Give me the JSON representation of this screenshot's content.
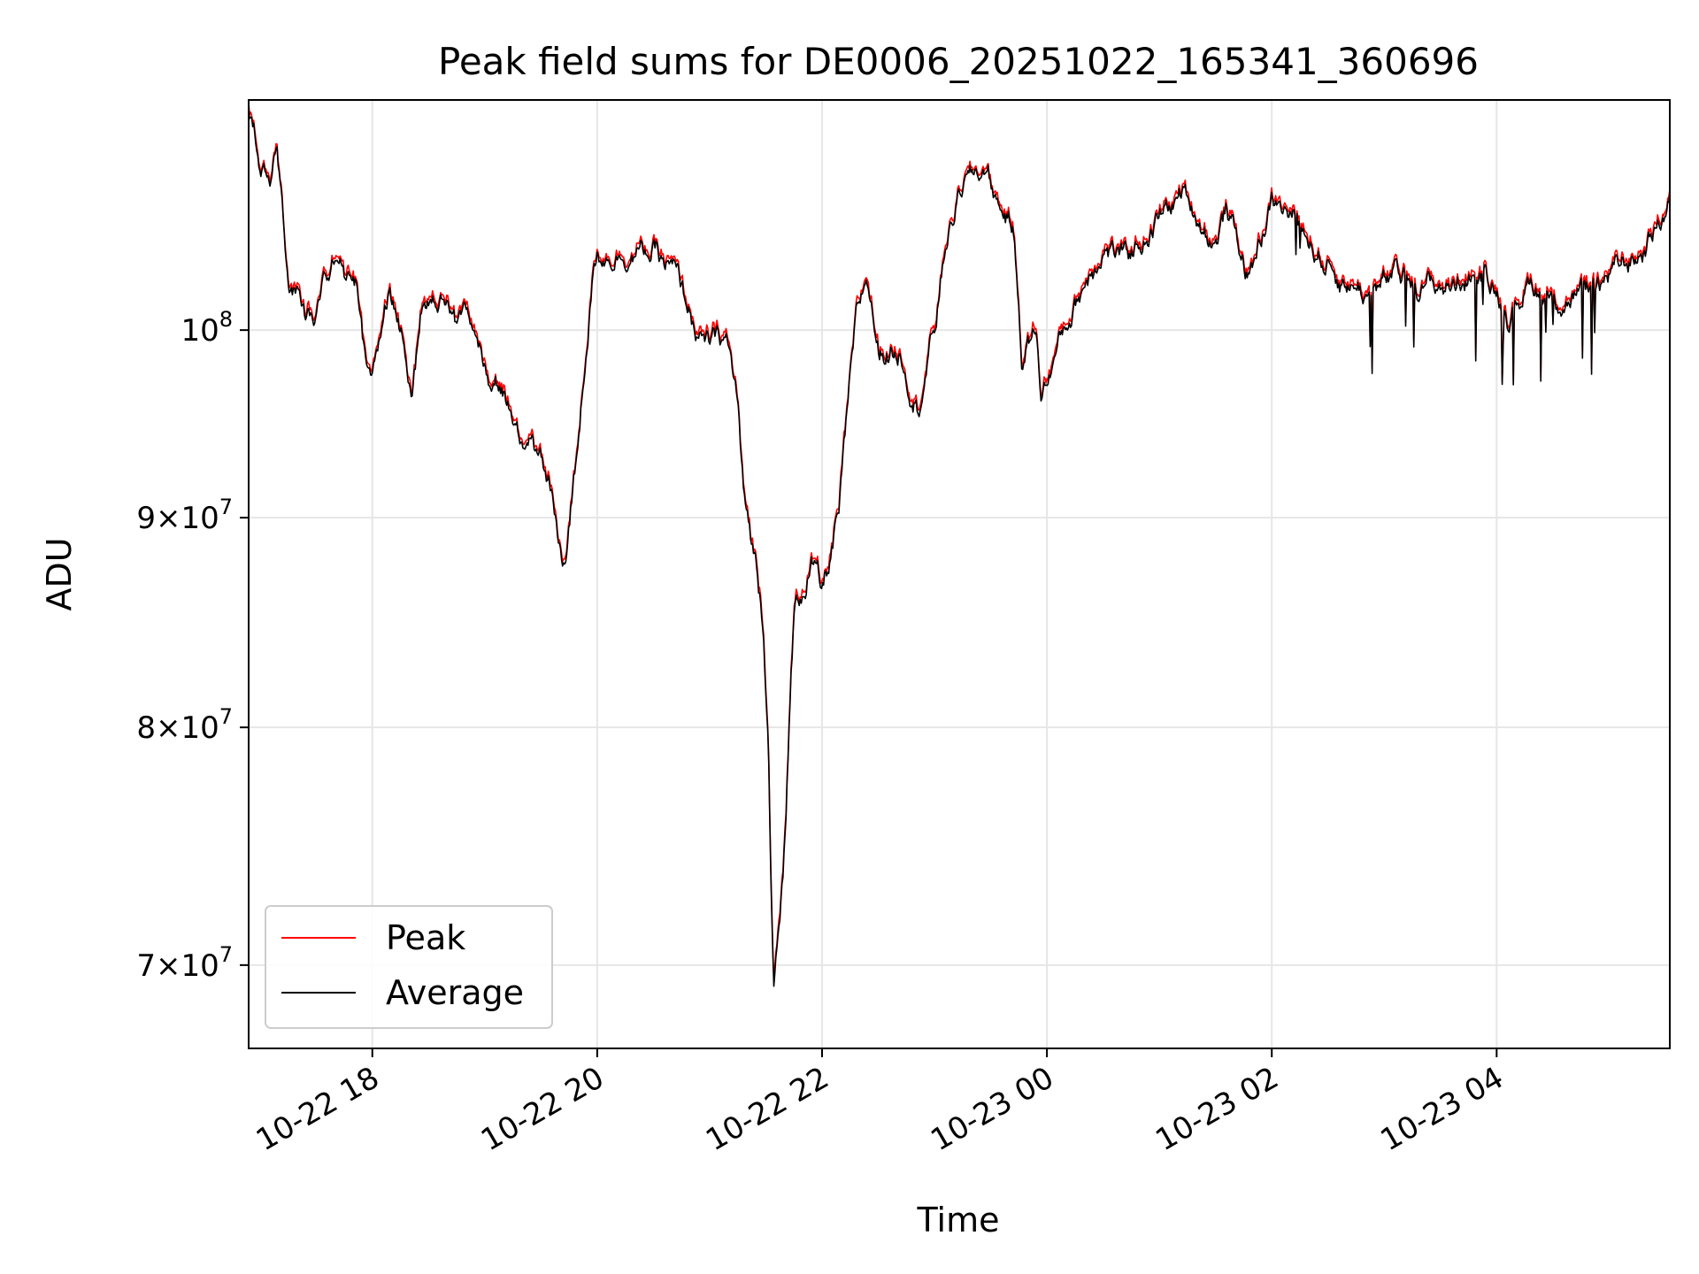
{
  "chart_data": {
    "type": "line",
    "title": "Peak field sums for DE0006_20251022_165341_360696",
    "xlabel": "Time",
    "ylabel": "ADU",
    "yscale": "log",
    "xlim_hours": [
      16.9,
      5.54
    ],
    "ylim": [
      66800000,
      113800000
    ],
    "grid": true,
    "legend_position": "lower-left",
    "x_ticks": [
      {
        "label": "10-22 18",
        "hour": 18
      },
      {
        "label": "10-22 20",
        "hour": 20
      },
      {
        "label": "10-22 22",
        "hour": 22
      },
      {
        "label": "10-23 00",
        "hour": 24
      },
      {
        "label": "10-23 02",
        "hour": 26
      },
      {
        "label": "10-23 04",
        "hour": 28
      }
    ],
    "y_ticks": [
      {
        "value": 70000000,
        "mantissa": "7",
        "label_sep": "×10",
        "exp": "7"
      },
      {
        "value": 80000000,
        "mantissa": "8",
        "label_sep": "×10",
        "exp": "7"
      },
      {
        "value": 90000000,
        "mantissa": "9",
        "label_sep": "×10",
        "exp": "7"
      },
      {
        "value": 100000000,
        "mantissa": "",
        "label_sep": "10",
        "exp": "8"
      }
    ],
    "series": [
      {
        "name": "Peak",
        "color": "#ff0000",
        "offset": 250000,
        "noise": 700000
      },
      {
        "name": "Average",
        "color": "#000000",
        "offset": 0,
        "noise": 600000
      }
    ],
    "x_hours": [
      16.9,
      17.0,
      17.1,
      17.15,
      17.25,
      17.3,
      17.4,
      17.5,
      17.6,
      17.7,
      17.75,
      17.85,
      17.95,
      18.0,
      18.1,
      18.15,
      18.3,
      18.35,
      18.45,
      18.5,
      18.6,
      18.7,
      18.75,
      18.85,
      19.0,
      19.2,
      19.3,
      19.5,
      19.6,
      19.65,
      19.72,
      19.8,
      19.95,
      20.0,
      20.3,
      20.5,
      20.7,
      20.95,
      21.15,
      21.25,
      21.3,
      21.4,
      21.48,
      21.52,
      21.57,
      21.65,
      21.75,
      21.9,
      22.0,
      22.15,
      22.3,
      22.4,
      22.5,
      22.7,
      22.85,
      23.0,
      23.1,
      23.25,
      23.45,
      23.55,
      23.7,
      23.78,
      23.9,
      23.95,
      24.15,
      24.5,
      24.7,
      25.0,
      25.2,
      25.5,
      25.6,
      25.8,
      26.0,
      26.2,
      26.4,
      26.6,
      26.9,
      27.1,
      27.3,
      27.6,
      27.8,
      28.0,
      28.1,
      28.3,
      28.5,
      28.7,
      28.9,
      29.1,
      29.3,
      29.5,
      29.54
    ],
    "y_base": [
      113000000,
      110000000,
      109000000,
      110500000,
      103000000,
      102500000,
      100500000,
      101000000,
      103000000,
      105000000,
      103500000,
      102500000,
      97000000,
      96500000,
      100500000,
      102000000,
      99000000,
      96000000,
      101500000,
      102000000,
      102500000,
      101000000,
      100500000,
      100000000,
      98000000,
      96000000,
      94000000,
      93000000,
      91000000,
      88500000,
      88000000,
      92000000,
      102500000,
      104500000,
      104500000,
      104500000,
      103000000,
      99000000,
      99500000,
      96000000,
      91000000,
      88000000,
      85000000,
      80000000,
      69000000,
      73000000,
      85000000,
      88000000,
      86000000,
      90000000,
      100000000,
      103000000,
      99000000,
      99000000,
      96000000,
      100000000,
      105000000,
      108500000,
      109500000,
      107500000,
      106000000,
      98500000,
      100000000,
      96500000,
      100000000,
      105000000,
      104000000,
      106500000,
      108000000,
      105000000,
      107000000,
      103000000,
      107500000,
      106500000,
      104500000,
      103000000,
      102000000,
      103000000,
      102500000,
      102500000,
      103500000,
      102500000,
      101000000,
      103000000,
      101500000,
      102000000,
      102500000,
      103500000,
      104500000,
      107000000,
      108000000
    ]
  },
  "legend": {
    "peak_label": "Peak",
    "average_label": "Average"
  }
}
